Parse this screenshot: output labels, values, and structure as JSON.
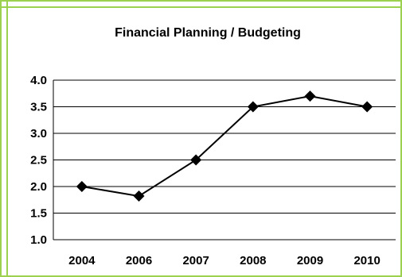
{
  "chart_data": {
    "type": "line",
    "title": "Financial Planning / Budgeting",
    "categories": [
      "2004",
      "2006",
      "2007",
      "2008",
      "2009",
      "2010"
    ],
    "values": [
      2.0,
      1.82,
      2.5,
      3.5,
      3.7,
      3.5
    ],
    "ylim": [
      1.0,
      4.0
    ],
    "yticks": [
      "1.0",
      "1.5",
      "2.0",
      "2.5",
      "3.0",
      "3.5",
      "4.0"
    ],
    "grid": true,
    "line_color": "#000000",
    "marker": "diamond",
    "border_color": "#9bd14f"
  }
}
